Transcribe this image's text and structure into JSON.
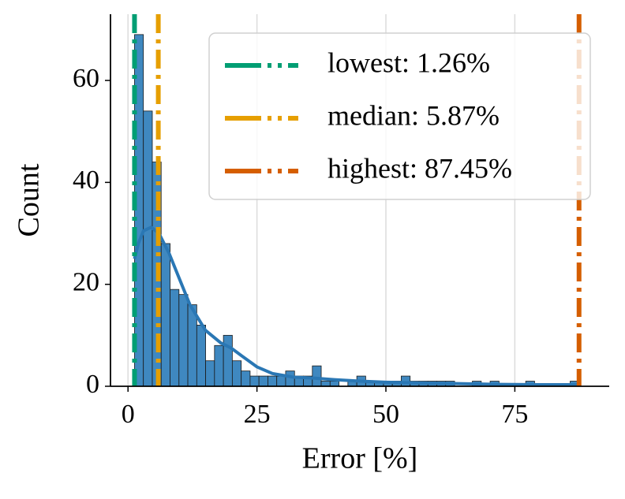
{
  "chart_data": {
    "type": "histogram",
    "xlabel": "Error [%]",
    "ylabel": "Count",
    "bins": [
      1.26,
      2.98,
      4.71,
      6.43,
      8.16,
      9.88,
      11.6,
      13.33,
      15.05,
      16.77,
      18.5,
      20.22,
      21.95,
      23.67,
      25.39,
      27.12,
      28.84,
      30.56,
      32.29,
      34.01,
      35.74,
      37.46,
      39.18,
      40.91,
      42.63,
      44.36,
      46.08,
      47.8,
      49.53,
      51.25,
      52.97,
      54.7,
      56.42,
      58.15,
      59.87,
      61.59,
      63.32,
      65.04,
      66.76,
      68.49,
      70.21,
      71.94,
      73.66,
      75.38,
      77.11,
      78.83,
      80.55,
      82.28,
      84.0,
      85.73,
      87.45
    ],
    "values": [
      69,
      54,
      44,
      28,
      19,
      18,
      16,
      12,
      5,
      8,
      10,
      5,
      3,
      2,
      2,
      2,
      2,
      3,
      2,
      2,
      4,
      1,
      1,
      0,
      1,
      2,
      1,
      1,
      1,
      1,
      2,
      1,
      1,
      1,
      1,
      1,
      0,
      0,
      1,
      0,
      1,
      0,
      0,
      0,
      1,
      0,
      0,
      0,
      0,
      1
    ],
    "color": "#3f88c0",
    "kde": {
      "color": "#2a77b4",
      "x": [
        1.26,
        2,
        3,
        4.5,
        6,
        8,
        10,
        12,
        15,
        18,
        20,
        22,
        25,
        28,
        32,
        36,
        40,
        45,
        50,
        55,
        60,
        70,
        80,
        87.45
      ],
      "y": [
        25,
        28,
        30.5,
        31.2,
        30,
        26,
        21,
        16,
        11,
        8.5,
        7.5,
        6,
        3.8,
        2.5,
        1.8,
        1.6,
        1.3,
        1,
        0.8,
        0.7,
        0.6,
        0.4,
        0.3,
        0.3
      ]
    },
    "vlines": [
      {
        "name": "lowest: 1.26%",
        "value": 1.26,
        "color": "#009e73"
      },
      {
        "name": "median: 5.87%",
        "value": 5.87,
        "color": "#e69f00"
      },
      {
        "name": "highest: 87.45%",
        "value": 87.45,
        "color": "#d55e00"
      }
    ],
    "xlim": [
      -3.4,
      93.3
    ],
    "ylim": [
      0,
      73
    ],
    "xticks": [
      0,
      25,
      50,
      75
    ],
    "yticks": [
      0,
      20,
      40,
      60
    ],
    "grid": "x",
    "legend": "upper right"
  }
}
